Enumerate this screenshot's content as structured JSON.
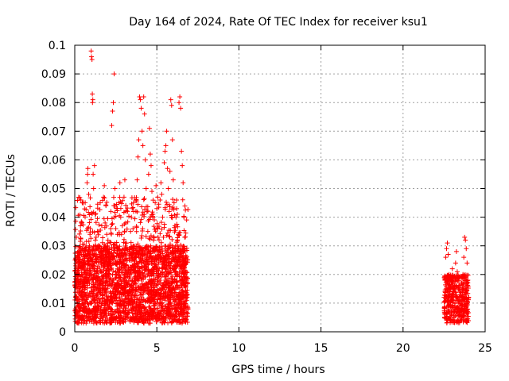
{
  "chart_data": {
    "type": "scatter",
    "title": "Day 164 of 2024, Rate Of TEC Index for receiver ksu1",
    "xlabel": "GPS time / hours",
    "ylabel": "ROTI / TECUs",
    "xlim": [
      0,
      25
    ],
    "ylim": [
      0,
      0.1
    ],
    "xticks": [
      "0",
      "5",
      "10",
      "15",
      "20",
      "25"
    ],
    "yticks": [
      "0",
      "0.01",
      "0.02",
      "0.03",
      "0.04",
      "0.05",
      "0.06",
      "0.07",
      "0.08",
      "0.09",
      "0.1"
    ],
    "grid": true,
    "marker": "+",
    "color": "#ff0000",
    "series": [
      {
        "name": "ROTI",
        "points": [
          [
            0.05,
            0.012
          ],
          [
            0.1,
            0.018
          ],
          [
            0.15,
            0.01
          ],
          [
            0.2,
            0.022
          ],
          [
            0.25,
            0.015
          ],
          [
            0.3,
            0.027
          ],
          [
            0.35,
            0.009
          ],
          [
            0.4,
            0.014
          ],
          [
            0.45,
            0.02
          ],
          [
            0.5,
            0.011
          ],
          [
            0.55,
            0.017
          ],
          [
            0.6,
            0.024
          ],
          [
            0.65,
            0.013
          ],
          [
            0.7,
            0.019
          ],
          [
            0.75,
            0.052
          ],
          [
            0.78,
            0.055
          ],
          [
            0.8,
            0.057
          ],
          [
            0.85,
            0.048
          ],
          [
            0.9,
            0.03
          ],
          [
            0.95,
            0.036
          ],
          [
            1.0,
            0.098
          ],
          [
            1.02,
            0.096
          ],
          [
            1.05,
            0.095
          ],
          [
            1.07,
            0.083
          ],
          [
            1.08,
            0.08
          ],
          [
            1.1,
            0.081
          ],
          [
            1.12,
            0.055
          ],
          [
            1.15,
            0.05
          ],
          [
            1.2,
            0.058
          ],
          [
            1.25,
            0.041
          ],
          [
            1.3,
            0.033
          ],
          [
            1.35,
            0.025
          ],
          [
            1.4,
            0.019
          ],
          [
            1.45,
            0.015
          ],
          [
            1.5,
            0.03
          ],
          [
            1.55,
            0.045
          ],
          [
            1.6,
            0.028
          ],
          [
            1.65,
            0.021
          ],
          [
            1.7,
            0.013
          ],
          [
            1.75,
            0.047
          ],
          [
            1.8,
            0.051
          ],
          [
            1.85,
            0.038
          ],
          [
            1.9,
            0.044
          ],
          [
            1.95,
            0.034
          ],
          [
            2.0,
            0.03
          ],
          [
            2.05,
            0.024
          ],
          [
            2.1,
            0.018
          ],
          [
            2.15,
            0.012
          ],
          [
            2.2,
            0.042
          ],
          [
            2.25,
            0.072
          ],
          [
            2.3,
            0.077
          ],
          [
            2.35,
            0.08
          ],
          [
            2.4,
            0.09
          ],
          [
            2.45,
            0.05
          ],
          [
            2.5,
            0.036
          ],
          [
            2.55,
            0.03
          ],
          [
            2.6,
            0.022
          ],
          [
            2.65,
            0.016
          ],
          [
            2.7,
            0.045
          ],
          [
            2.75,
            0.052
          ],
          [
            2.8,
            0.04
          ],
          [
            2.85,
            0.034
          ],
          [
            2.9,
            0.026
          ],
          [
            2.95,
            0.018
          ],
          [
            3.0,
            0.047
          ],
          [
            3.05,
            0.053
          ],
          [
            3.1,
            0.038
          ],
          [
            3.15,
            0.031
          ],
          [
            3.2,
            0.025
          ],
          [
            3.25,
            0.02
          ],
          [
            3.3,
            0.014
          ],
          [
            3.35,
            0.028
          ],
          [
            3.4,
            0.035
          ],
          [
            3.45,
            0.04
          ],
          [
            3.5,
            0.043
          ],
          [
            3.55,
            0.036
          ],
          [
            3.6,
            0.029
          ],
          [
            3.65,
            0.023
          ],
          [
            3.7,
            0.018
          ],
          [
            3.75,
            0.046
          ],
          [
            3.8,
            0.053
          ],
          [
            3.85,
            0.061
          ],
          [
            3.9,
            0.067
          ],
          [
            3.95,
            0.082
          ],
          [
            4.0,
            0.081
          ],
          [
            4.05,
            0.078
          ],
          [
            4.1,
            0.07
          ],
          [
            4.15,
            0.065
          ],
          [
            4.2,
            0.082
          ],
          [
            4.25,
            0.076
          ],
          [
            4.3,
            0.06
          ],
          [
            4.35,
            0.05
          ],
          [
            4.4,
            0.042
          ],
          [
            4.45,
            0.035
          ],
          [
            4.5,
            0.055
          ],
          [
            4.55,
            0.071
          ],
          [
            4.6,
            0.062
          ],
          [
            4.65,
            0.058
          ],
          [
            4.7,
            0.049
          ],
          [
            4.75,
            0.04
          ],
          [
            4.8,
            0.032
          ],
          [
            4.85,
            0.025
          ],
          [
            4.9,
            0.045
          ],
          [
            4.95,
            0.051
          ],
          [
            5.0,
            0.043
          ],
          [
            5.05,
            0.036
          ],
          [
            5.1,
            0.028
          ],
          [
            5.15,
            0.022
          ],
          [
            5.2,
            0.046
          ],
          [
            5.25,
            0.052
          ],
          [
            5.3,
            0.048
          ],
          [
            5.35,
            0.04
          ],
          [
            5.4,
            0.033
          ],
          [
            5.45,
            0.059
          ],
          [
            5.5,
            0.063
          ],
          [
            5.55,
            0.065
          ],
          [
            5.6,
            0.07
          ],
          [
            5.65,
            0.057
          ],
          [
            5.7,
            0.05
          ],
          [
            5.75,
            0.042
          ],
          [
            5.8,
            0.056
          ],
          [
            5.85,
            0.081
          ],
          [
            5.9,
            0.079
          ],
          [
            5.95,
            0.067
          ],
          [
            6.0,
            0.053
          ],
          [
            6.05,
            0.045
          ],
          [
            6.1,
            0.037
          ],
          [
            6.15,
            0.03
          ],
          [
            6.2,
            0.046
          ],
          [
            6.25,
            0.041
          ],
          [
            6.3,
            0.034
          ],
          [
            6.35,
            0.08
          ],
          [
            6.4,
            0.082
          ],
          [
            6.45,
            0.078
          ],
          [
            6.5,
            0.063
          ],
          [
            6.55,
            0.058
          ],
          [
            6.6,
            0.052
          ],
          [
            6.65,
            0.04
          ],
          [
            6.7,
            0.033
          ],
          [
            6.75,
            0.026
          ],
          [
            6.8,
            0.018
          ],
          [
            6.85,
            0.012
          ],
          [
            6.9,
            0.008
          ],
          [
            22.5,
            0.012
          ],
          [
            22.55,
            0.018
          ],
          [
            22.6,
            0.026
          ],
          [
            22.65,
            0.029
          ],
          [
            22.7,
            0.031
          ],
          [
            22.75,
            0.027
          ],
          [
            22.8,
            0.02
          ],
          [
            22.85,
            0.014
          ],
          [
            22.9,
            0.009
          ],
          [
            22.95,
            0.016
          ],
          [
            23.0,
            0.022
          ],
          [
            23.05,
            0.012
          ],
          [
            23.1,
            0.008
          ],
          [
            23.15,
            0.018
          ],
          [
            23.2,
            0.024
          ],
          [
            23.25,
            0.028
          ],
          [
            23.3,
            0.021
          ],
          [
            23.35,
            0.015
          ],
          [
            23.4,
            0.01
          ],
          [
            23.45,
            0.006
          ],
          [
            23.5,
            0.013
          ],
          [
            23.55,
            0.019
          ],
          [
            23.6,
            0.015
          ],
          [
            23.65,
            0.02
          ],
          [
            23.7,
            0.026
          ],
          [
            23.75,
            0.033
          ],
          [
            23.8,
            0.032
          ],
          [
            23.85,
            0.029
          ],
          [
            23.9,
            0.024
          ],
          [
            23.95,
            0.018
          ],
          [
            24.0,
            0.012
          ]
        ]
      }
    ],
    "dense_bands": [
      {
        "x0": 0.0,
        "x1": 6.9,
        "ylo": 0.004,
        "yhi": 0.03
      },
      {
        "x0": 0.0,
        "x1": 6.9,
        "ylo": 0.003,
        "yhi": 0.047
      },
      {
        "x0": 22.5,
        "x1": 24.0,
        "ylo": 0.003,
        "yhi": 0.02
      }
    ]
  }
}
